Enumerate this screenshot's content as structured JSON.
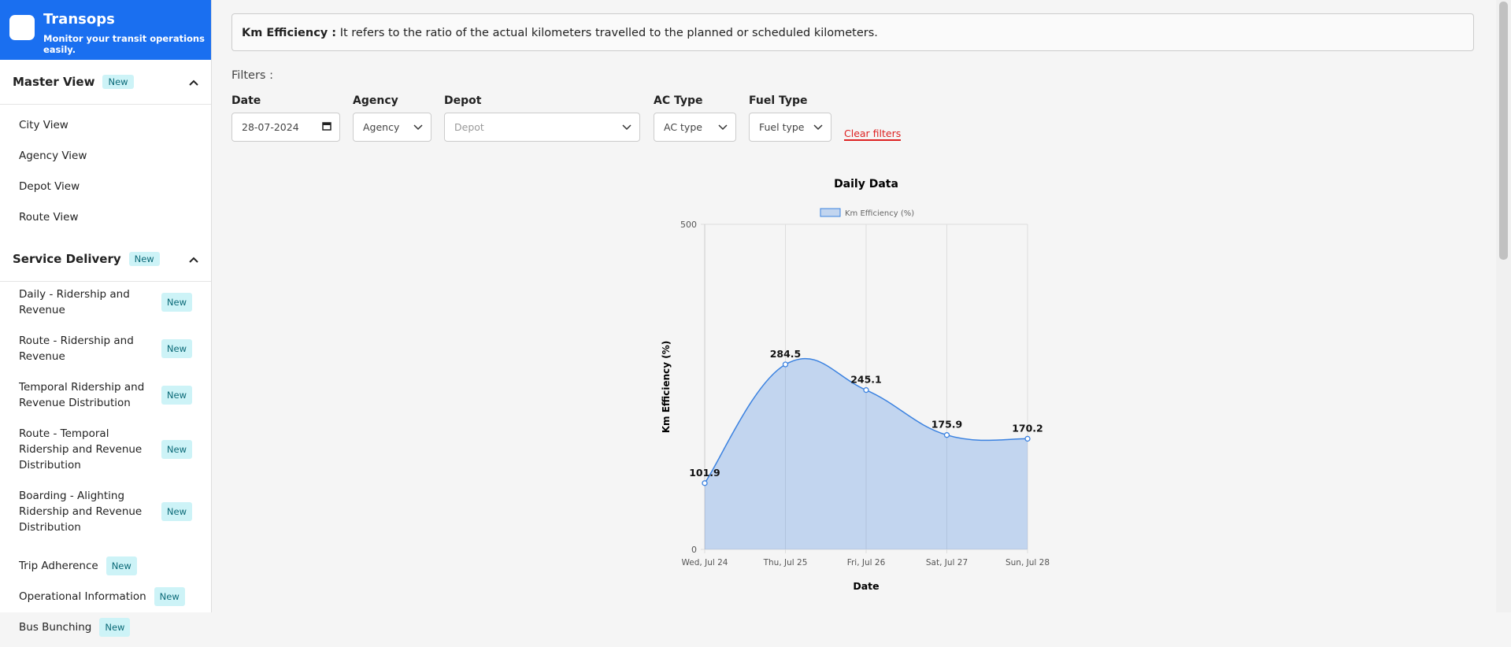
{
  "header": {
    "title": "Transops",
    "subtitle": "Monitor your transit operations easily."
  },
  "sidebar": {
    "sections": [
      {
        "title": "Master View",
        "badge": "New",
        "items": [
          {
            "label": "City View"
          },
          {
            "label": "Agency View"
          },
          {
            "label": "Depot View"
          },
          {
            "label": "Route View"
          }
        ]
      },
      {
        "title": "Service Delivery",
        "badge": "New",
        "items": [
          {
            "label": "Daily - Ridership and Revenue",
            "badge": "New"
          },
          {
            "label": "Route - Ridership and Revenue",
            "badge": "New"
          },
          {
            "label": "Temporal Ridership and Revenue Distribution",
            "badge": "New"
          },
          {
            "label": "Route - Temporal Ridership and Revenue Distribution",
            "badge": "New"
          },
          {
            "label": "Boarding - Alighting Ridership and Revenue Distribution",
            "badge": "New"
          },
          {
            "label": "Trip Adherence",
            "badge": "New"
          },
          {
            "label": "Operational Information",
            "badge": "New"
          },
          {
            "label": "Bus Bunching",
            "badge": "New"
          }
        ]
      }
    ]
  },
  "info": {
    "term": "Km Efficiency :",
    "text": "It refers to the ratio of the actual kilometers travelled to the planned or scheduled kilometers."
  },
  "filters": {
    "heading": "Filters :",
    "fields": [
      {
        "label": "Date",
        "value": "28-07-2024"
      },
      {
        "label": "Agency",
        "value": "Agency"
      },
      {
        "label": "Depot",
        "value": "Depot"
      },
      {
        "label": "AC Type",
        "value": "AC type"
      },
      {
        "label": "Fuel Type",
        "value": "Fuel type"
      }
    ],
    "clear": "Clear filters"
  },
  "chart_data": {
    "type": "area",
    "title": "Daily Data",
    "x_label": "Date",
    "y_label": "Km Efficiency (%)",
    "categories": [
      "Wed, Jul 24",
      "Thu, Jul 25",
      "Fri, Jul 26",
      "Sat, Jul 27",
      "Sun, Jul 28"
    ],
    "series": [
      {
        "name": "Km Efficiency (%)",
        "color": "#3b82e0",
        "values": [
          101.9,
          284.5,
          245.1,
          175.9,
          170.2
        ]
      }
    ],
    "ylim": [
      0,
      500
    ],
    "yticks": [
      0,
      500
    ],
    "grid": true
  }
}
